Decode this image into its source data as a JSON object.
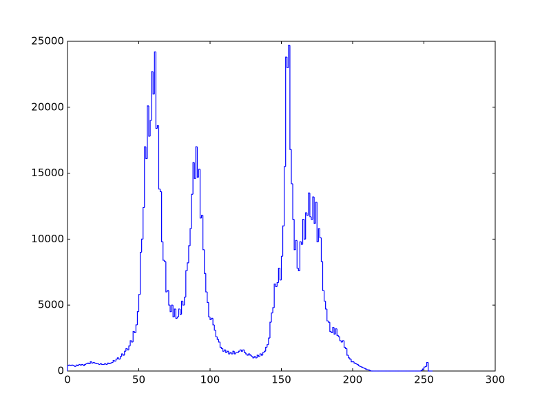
{
  "chart_data": {
    "type": "histogram",
    "bins": [
      0,
      1,
      2,
      3,
      4,
      5,
      6,
      7,
      8,
      9,
      10,
      11,
      12,
      13,
      14,
      15,
      16,
      17,
      18,
      19,
      20,
      21,
      22,
      23,
      24,
      25,
      26,
      27,
      28,
      29,
      30,
      31,
      32,
      33,
      34,
      35,
      36,
      37,
      38,
      39,
      40,
      41,
      42,
      43,
      44,
      45,
      46,
      47,
      48,
      49,
      50,
      51,
      52,
      53,
      54,
      55,
      56,
      57,
      58,
      59,
      60,
      61,
      62,
      63,
      64,
      65,
      66,
      67,
      68,
      69,
      70,
      71,
      72,
      73,
      74,
      75,
      76,
      77,
      78,
      79,
      80,
      81,
      82,
      83,
      84,
      85,
      86,
      87,
      88,
      89,
      90,
      91,
      92,
      93,
      94,
      95,
      96,
      97,
      98,
      99,
      100,
      101,
      102,
      103,
      104,
      105,
      106,
      107,
      108,
      109,
      110,
      111,
      112,
      113,
      114,
      115,
      116,
      117,
      118,
      119,
      120,
      121,
      122,
      123,
      124,
      125,
      126,
      127,
      128,
      129,
      130,
      131,
      132,
      133,
      134,
      135,
      136,
      137,
      138,
      139,
      140,
      141,
      142,
      143,
      144,
      145,
      146,
      147,
      148,
      149,
      150,
      151,
      152,
      153,
      154,
      155,
      156,
      157,
      158,
      159,
      160,
      161,
      162,
      163,
      164,
      165,
      166,
      167,
      168,
      169,
      170,
      171,
      172,
      173,
      174,
      175,
      176,
      177,
      178,
      179,
      180,
      181,
      182,
      183,
      184,
      185,
      186,
      187,
      188,
      189,
      190,
      191,
      192,
      193,
      194,
      195,
      196,
      197,
      198,
      199,
      200,
      201,
      202,
      203,
      204,
      205,
      206,
      207,
      208,
      209,
      210,
      211,
      212,
      213,
      214,
      215,
      216,
      217,
      218,
      219,
      220,
      221,
      222,
      223,
      224,
      225,
      226,
      227,
      228,
      229,
      230,
      231,
      232,
      233,
      234,
      235,
      236,
      237,
      238,
      239,
      240,
      241,
      242,
      243,
      244,
      245,
      246,
      247,
      248,
      249,
      250,
      251,
      252,
      253,
      254,
      255,
      256
    ],
    "values": [
      400,
      450,
      400,
      450,
      400,
      350,
      450,
      400,
      500,
      450,
      500,
      400,
      500,
      550,
      600,
      550,
      700,
      600,
      650,
      600,
      550,
      550,
      500,
      550,
      500,
      500,
      550,
      500,
      600,
      550,
      600,
      650,
      800,
      750,
      900,
      1000,
      900,
      1100,
      1300,
      1200,
      1500,
      1700,
      1600,
      1900,
      2300,
      2200,
      3000,
      2900,
      3500,
      4500,
      5800,
      9000,
      10000,
      12400,
      17000,
      16100,
      20100,
      17800,
      19000,
      22700,
      21000,
      24200,
      18400,
      18600,
      13800,
      13600,
      9800,
      8400,
      8300,
      6000,
      6100,
      5000,
      4500,
      5000,
      4100,
      4700,
      4000,
      4100,
      4700,
      4300,
      5300,
      5000,
      5600,
      7600,
      8200,
      9500,
      10800,
      13400,
      15800,
      14600,
      17000,
      14700,
      15300,
      11600,
      11800,
      9200,
      7400,
      6000,
      5200,
      4100,
      3900,
      4000,
      3500,
      3100,
      2600,
      2400,
      2200,
      1800,
      1700,
      1500,
      1600,
      1400,
      1500,
      1300,
      1400,
      1300,
      1500,
      1300,
      1400,
      1400,
      1500,
      1600,
      1500,
      1600,
      1400,
      1300,
      1200,
      1300,
      1200,
      1100,
      1000,
      1100,
      1000,
      1200,
      1100,
      1300,
      1200,
      1400,
      1500,
      1800,
      2000,
      2500,
      3700,
      4400,
      4800,
      6600,
      6400,
      6700,
      7800,
      6900,
      8700,
      11000,
      15500,
      23800,
      23000,
      24700,
      16800,
      14200,
      11500,
      9200,
      9900,
      7800,
      7600,
      9800,
      9600,
      11500,
      10000,
      12000,
      11800,
      13500,
      11700,
      11500,
      13200,
      11200,
      12800,
      9800,
      10800,
      10100,
      8300,
      6100,
      5300,
      4700,
      3800,
      3700,
      3000,
      2900,
      3300,
      2800,
      3200,
      2700,
      2600,
      2300,
      2200,
      2300,
      1800,
      1700,
      1200,
      1000,
      900,
      700,
      700,
      600,
      550,
      500,
      400,
      350,
      300,
      250,
      200,
      150,
      100,
      80,
      30,
      0,
      0,
      0,
      0,
      0,
      0,
      0,
      0,
      0,
      0,
      0,
      0,
      0,
      0,
      0,
      0,
      0,
      0,
      0,
      0,
      0,
      0,
      0,
      0,
      0,
      0,
      0,
      0,
      0,
      0,
      0,
      0,
      0,
      0,
      0,
      50,
      150,
      300,
      350,
      650,
      0,
      0,
      0
    ],
    "color": "#0000ff",
    "xlim": [
      0,
      300
    ],
    "xticks": [
      0,
      50,
      100,
      150,
      200,
      250,
      300
    ],
    "ylim": [
      0,
      25000
    ],
    "yticks": [
      0,
      5000,
      10000,
      15000,
      20000,
      25000
    ]
  }
}
